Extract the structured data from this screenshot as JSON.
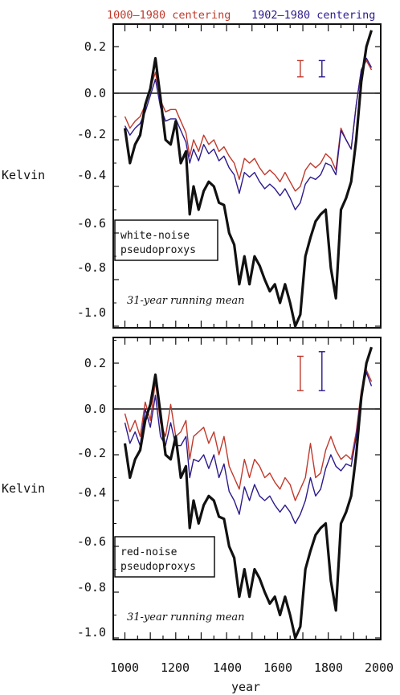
{
  "legend": [
    {
      "label": "1000–1980 centering",
      "color": "#c0392b"
    },
    {
      "label": "1902–1980 centering",
      "color": "#2c1a8c"
    }
  ],
  "colors": {
    "black_series": "#111111",
    "red_series": "#c0392b",
    "blue_series": "#2c1a8c"
  },
  "xlabel": "year",
  "ylabel": "Kelvin",
  "x_ticks": [
    "1000",
    "1200",
    "1400",
    "1600",
    "1800",
    "2000"
  ],
  "y_ticks": [
    "0.2",
    "0.0",
    "-0.2",
    "-0.4",
    "-0.6",
    "-0.8",
    "-1.0"
  ],
  "chart_data": [
    {
      "type": "line",
      "panel": "top",
      "box_label": [
        "white-noise",
        "pseudoproxys"
      ],
      "note": "31-year running mean",
      "xlim": [
        1000,
        2000
      ],
      "ylim": [
        -1.07,
        0.3
      ],
      "error_bars": [
        {
          "color": "#c0392b",
          "x": 1690,
          "y_low": 0.07,
          "y_high": 0.14
        },
        {
          "color": "#2c1a8c",
          "x": 1775,
          "y_low": 0.07,
          "y_high": 0.14
        }
      ],
      "series": [
        {
          "color": "#111111",
          "x": [
            1000,
            1020,
            1040,
            1060,
            1080,
            1100,
            1120,
            1140,
            1160,
            1180,
            1200,
            1220,
            1240,
            1255,
            1270,
            1290,
            1310,
            1330,
            1350,
            1370,
            1390,
            1410,
            1430,
            1450,
            1470,
            1490,
            1510,
            1530,
            1550,
            1570,
            1590,
            1610,
            1630,
            1650,
            1670,
            1690,
            1710,
            1730,
            1750,
            1770,
            1790,
            1810,
            1830,
            1850,
            1870,
            1890,
            1910,
            1930,
            1950,
            1970
          ],
          "y": [
            -0.15,
            -0.3,
            -0.22,
            -0.18,
            -0.05,
            0.02,
            0.15,
            -0.02,
            -0.2,
            -0.22,
            -0.12,
            -0.3,
            -0.25,
            -0.52,
            -0.4,
            -0.5,
            -0.42,
            -0.38,
            -0.4,
            -0.47,
            -0.48,
            -0.6,
            -0.65,
            -0.82,
            -0.7,
            -0.82,
            -0.7,
            -0.74,
            -0.8,
            -0.85,
            -0.82,
            -0.9,
            -0.82,
            -0.9,
            -1.03,
            -0.95,
            -0.7,
            -0.62,
            -0.55,
            -0.52,
            -0.5,
            -0.75,
            -0.88,
            -0.5,
            -0.45,
            -0.38,
            -0.2,
            0.05,
            0.2,
            0.27
          ]
        },
        {
          "color": "#c0392b",
          "x": [
            1000,
            1020,
            1040,
            1060,
            1080,
            1100,
            1120,
            1140,
            1160,
            1180,
            1200,
            1220,
            1240,
            1255,
            1270,
            1290,
            1310,
            1330,
            1350,
            1370,
            1390,
            1410,
            1430,
            1450,
            1470,
            1490,
            1510,
            1530,
            1550,
            1570,
            1590,
            1610,
            1630,
            1650,
            1670,
            1690,
            1710,
            1730,
            1750,
            1770,
            1790,
            1810,
            1830,
            1850,
            1870,
            1890,
            1910,
            1930,
            1950,
            1970
          ],
          "y": [
            -0.1,
            -0.15,
            -0.12,
            -0.1,
            -0.05,
            0.02,
            0.09,
            -0.03,
            -0.08,
            -0.07,
            -0.07,
            -0.12,
            -0.17,
            -0.27,
            -0.2,
            -0.25,
            -0.18,
            -0.22,
            -0.2,
            -0.25,
            -0.23,
            -0.27,
            -0.3,
            -0.37,
            -0.28,
            -0.3,
            -0.28,
            -0.32,
            -0.35,
            -0.33,
            -0.35,
            -0.38,
            -0.34,
            -0.38,
            -0.42,
            -0.4,
            -0.33,
            -0.3,
            -0.32,
            -0.3,
            -0.26,
            -0.28,
            -0.33,
            -0.15,
            -0.2,
            -0.24,
            -0.05,
            0.1,
            0.14,
            0.1
          ]
        },
        {
          "color": "#2c1a8c",
          "x": [
            1000,
            1020,
            1040,
            1060,
            1080,
            1100,
            1120,
            1140,
            1160,
            1180,
            1200,
            1220,
            1240,
            1255,
            1270,
            1290,
            1310,
            1330,
            1350,
            1370,
            1390,
            1410,
            1430,
            1450,
            1470,
            1490,
            1510,
            1530,
            1550,
            1570,
            1590,
            1610,
            1630,
            1650,
            1670,
            1690,
            1710,
            1730,
            1750,
            1770,
            1790,
            1810,
            1830,
            1850,
            1870,
            1890,
            1910,
            1930,
            1950,
            1970
          ],
          "y": [
            -0.14,
            -0.18,
            -0.15,
            -0.13,
            -0.08,
            -0.01,
            0.06,
            -0.06,
            -0.12,
            -0.11,
            -0.11,
            -0.16,
            -0.21,
            -0.3,
            -0.24,
            -0.29,
            -0.22,
            -0.26,
            -0.24,
            -0.29,
            -0.27,
            -0.32,
            -0.35,
            -0.43,
            -0.34,
            -0.36,
            -0.34,
            -0.38,
            -0.41,
            -0.39,
            -0.41,
            -0.44,
            -0.41,
            -0.45,
            -0.5,
            -0.47,
            -0.39,
            -0.36,
            -0.37,
            -0.35,
            -0.3,
            -0.31,
            -0.35,
            -0.16,
            -0.2,
            -0.24,
            -0.05,
            0.1,
            0.15,
            0.11
          ]
        }
      ]
    },
    {
      "type": "line",
      "panel": "bottom",
      "box_label": [
        "red-noise",
        "pseudoproxys"
      ],
      "note": "31-year running mean",
      "xlim": [
        1000,
        2000
      ],
      "ylim": [
        -1.07,
        0.3
      ],
      "error_bars": [
        {
          "color": "#c0392b",
          "x": 1690,
          "y_low": 0.08,
          "y_high": 0.23
        },
        {
          "color": "#2c1a8c",
          "x": 1775,
          "y_low": 0.08,
          "y_high": 0.25
        }
      ],
      "series": [
        {
          "color": "#111111",
          "x": [
            1000,
            1020,
            1040,
            1060,
            1080,
            1100,
            1120,
            1140,
            1160,
            1180,
            1200,
            1220,
            1240,
            1255,
            1270,
            1290,
            1310,
            1330,
            1350,
            1370,
            1390,
            1410,
            1430,
            1450,
            1470,
            1490,
            1510,
            1530,
            1550,
            1570,
            1590,
            1610,
            1630,
            1650,
            1670,
            1690,
            1710,
            1730,
            1750,
            1770,
            1790,
            1810,
            1830,
            1850,
            1870,
            1890,
            1910,
            1930,
            1950,
            1970
          ],
          "y": [
            -0.15,
            -0.3,
            -0.22,
            -0.18,
            -0.05,
            0.02,
            0.15,
            -0.02,
            -0.2,
            -0.22,
            -0.12,
            -0.3,
            -0.25,
            -0.52,
            -0.4,
            -0.5,
            -0.42,
            -0.38,
            -0.4,
            -0.47,
            -0.48,
            -0.6,
            -0.65,
            -0.82,
            -0.7,
            -0.82,
            -0.7,
            -0.74,
            -0.8,
            -0.85,
            -0.82,
            -0.9,
            -0.82,
            -0.9,
            -1.03,
            -0.95,
            -0.7,
            -0.62,
            -0.55,
            -0.52,
            -0.5,
            -0.75,
            -0.88,
            -0.5,
            -0.45,
            -0.38,
            -0.2,
            0.05,
            0.2,
            0.27
          ]
        },
        {
          "color": "#c0392b",
          "x": [
            1000,
            1020,
            1040,
            1060,
            1080,
            1100,
            1120,
            1140,
            1160,
            1180,
            1200,
            1220,
            1240,
            1255,
            1270,
            1290,
            1310,
            1330,
            1350,
            1370,
            1390,
            1410,
            1430,
            1450,
            1470,
            1490,
            1510,
            1530,
            1550,
            1570,
            1590,
            1610,
            1630,
            1650,
            1670,
            1690,
            1710,
            1730,
            1750,
            1770,
            1790,
            1810,
            1830,
            1850,
            1870,
            1890,
            1910,
            1930,
            1950,
            1970
          ],
          "y": [
            -0.02,
            -0.1,
            -0.05,
            -0.12,
            0.03,
            -0.05,
            0.12,
            -0.06,
            -0.12,
            0.02,
            -0.12,
            -0.1,
            -0.05,
            -0.22,
            -0.12,
            -0.1,
            -0.08,
            -0.15,
            -0.1,
            -0.2,
            -0.12,
            -0.25,
            -0.3,
            -0.35,
            -0.22,
            -0.3,
            -0.22,
            -0.25,
            -0.3,
            -0.28,
            -0.32,
            -0.35,
            -0.3,
            -0.33,
            -0.4,
            -0.35,
            -0.3,
            -0.15,
            -0.3,
            -0.28,
            -0.18,
            -0.12,
            -0.18,
            -0.22,
            -0.2,
            -0.22,
            -0.1,
            0.08,
            0.17,
            0.12
          ]
        },
        {
          "color": "#2c1a8c",
          "x": [
            1000,
            1020,
            1040,
            1060,
            1080,
            1100,
            1120,
            1140,
            1160,
            1180,
            1200,
            1220,
            1240,
            1255,
            1270,
            1290,
            1310,
            1330,
            1350,
            1370,
            1390,
            1410,
            1430,
            1450,
            1470,
            1490,
            1510,
            1530,
            1550,
            1570,
            1590,
            1610,
            1630,
            1650,
            1670,
            1690,
            1710,
            1730,
            1750,
            1770,
            1790,
            1810,
            1830,
            1850,
            1870,
            1890,
            1910,
            1930,
            1950,
            1970
          ],
          "y": [
            -0.06,
            -0.15,
            -0.1,
            -0.16,
            0.0,
            -0.08,
            0.06,
            -0.12,
            -0.16,
            -0.06,
            -0.16,
            -0.16,
            -0.12,
            -0.3,
            -0.22,
            -0.23,
            -0.2,
            -0.26,
            -0.2,
            -0.3,
            -0.24,
            -0.36,
            -0.4,
            -0.46,
            -0.34,
            -0.4,
            -0.33,
            -0.38,
            -0.4,
            -0.38,
            -0.42,
            -0.45,
            -0.42,
            -0.45,
            -0.5,
            -0.46,
            -0.4,
            -0.3,
            -0.38,
            -0.35,
            -0.26,
            -0.2,
            -0.25,
            -0.27,
            -0.24,
            -0.25,
            -0.12,
            0.07,
            0.16,
            0.1
          ]
        }
      ]
    }
  ]
}
